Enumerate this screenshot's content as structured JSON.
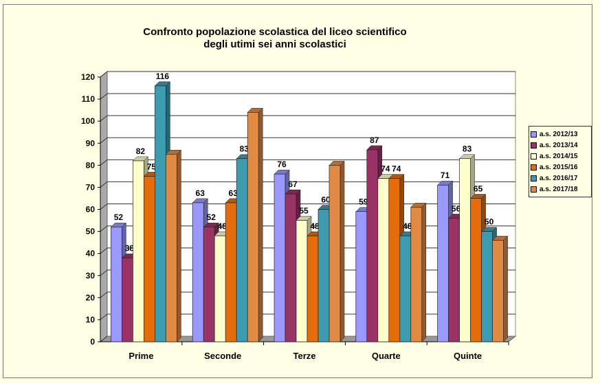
{
  "chart_data": {
    "type": "bar",
    "title": "Confronto popolazione scolastica  del liceo scientifico\ndegli utimi sei anni  scolastici",
    "title_lines": [
      "Confronto popolazione scolastica  del liceo scientifico",
      "degli utimi sei anni  scolastici"
    ],
    "categories": [
      "Prime",
      "Seconde",
      "Terze",
      "Quarte",
      "Quinte"
    ],
    "series": [
      {
        "name": "a.s. 2012/13",
        "color": "#9999ff",
        "values": [
          52,
          63,
          76,
          59,
          71
        ],
        "labels": true
      },
      {
        "name": "a.s. 2013/14",
        "color": "#993366",
        "values": [
          38,
          52,
          67,
          87,
          56
        ],
        "labels": true
      },
      {
        "name": "a.s. 2014/15",
        "color": "#ffffcc",
        "values": [
          82,
          48,
          55,
          74,
          83
        ],
        "labels": true
      },
      {
        "name": "a.s. 2015/16",
        "color": "#e46c0a",
        "values": [
          75,
          63,
          48,
          74,
          65
        ],
        "labels": true
      },
      {
        "name": "a.s. 2016/17",
        "color": "#3d9bb0",
        "values": [
          116,
          83,
          60,
          48,
          50
        ],
        "labels": true
      },
      {
        "name": "a.s. 2017/18",
        "color": "#e08a44",
        "values": [
          85,
          104,
          80,
          61,
          46
        ],
        "labels": false
      }
    ],
    "yticks": [
      0,
      10,
      20,
      30,
      40,
      50,
      60,
      70,
      80,
      90,
      100,
      110,
      120
    ],
    "ylim": [
      0,
      120
    ],
    "xlabel": "",
    "ylabel": "",
    "grid": true,
    "legend": "right",
    "style": "3d"
  }
}
